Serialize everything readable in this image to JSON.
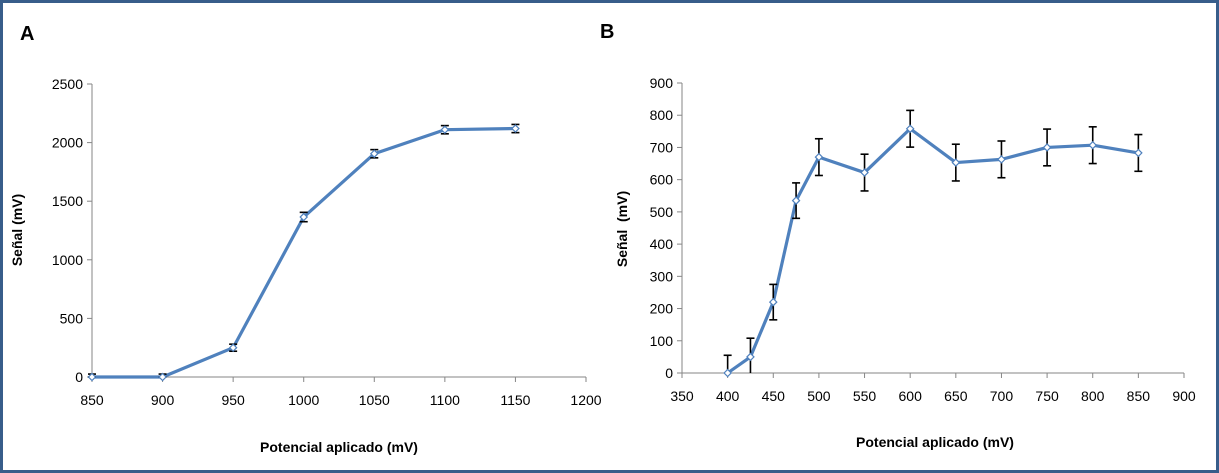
{
  "chart_data": [
    {
      "panel_label": "A",
      "type": "line",
      "xlabel": "Potencial aplicado (mV)",
      "ylabel": "Señal (mV)",
      "xlim": [
        850,
        1200
      ],
      "ylim": [
        0,
        2500
      ],
      "xticks": [
        850,
        900,
        950,
        1000,
        1050,
        1100,
        1150,
        1200
      ],
      "yticks": [
        0,
        500,
        1000,
        1500,
        2000,
        2500
      ],
      "grid": false,
      "series_color": "#4f81bd",
      "x": [
        850,
        900,
        950,
        1000,
        1050,
        1100,
        1150
      ],
      "y": [
        0,
        0,
        250,
        1365,
        1905,
        2110,
        2120
      ],
      "error": [
        25,
        25,
        30,
        40,
        35,
        35,
        35
      ]
    },
    {
      "panel_label": "B",
      "type": "line",
      "xlabel": "Potencial aplicado (mV)",
      "ylabel": "Señal  (mV)",
      "xlim": [
        350,
        900
      ],
      "ylim": [
        0,
        900
      ],
      "xticks": [
        350,
        400,
        450,
        500,
        550,
        600,
        650,
        700,
        750,
        800,
        850,
        900
      ],
      "yticks": [
        0,
        100,
        200,
        300,
        400,
        500,
        600,
        700,
        800,
        900
      ],
      "grid": false,
      "series_color": "#4f81bd",
      "x": [
        400,
        425,
        450,
        475,
        500,
        550,
        600,
        650,
        700,
        750,
        800,
        850
      ],
      "y": [
        0,
        50,
        220,
        535,
        670,
        622,
        758,
        653,
        663,
        700,
        707,
        683
      ],
      "error": [
        55,
        58,
        55,
        55,
        57,
        57,
        57,
        57,
        57,
        57,
        57,
        57
      ]
    }
  ]
}
